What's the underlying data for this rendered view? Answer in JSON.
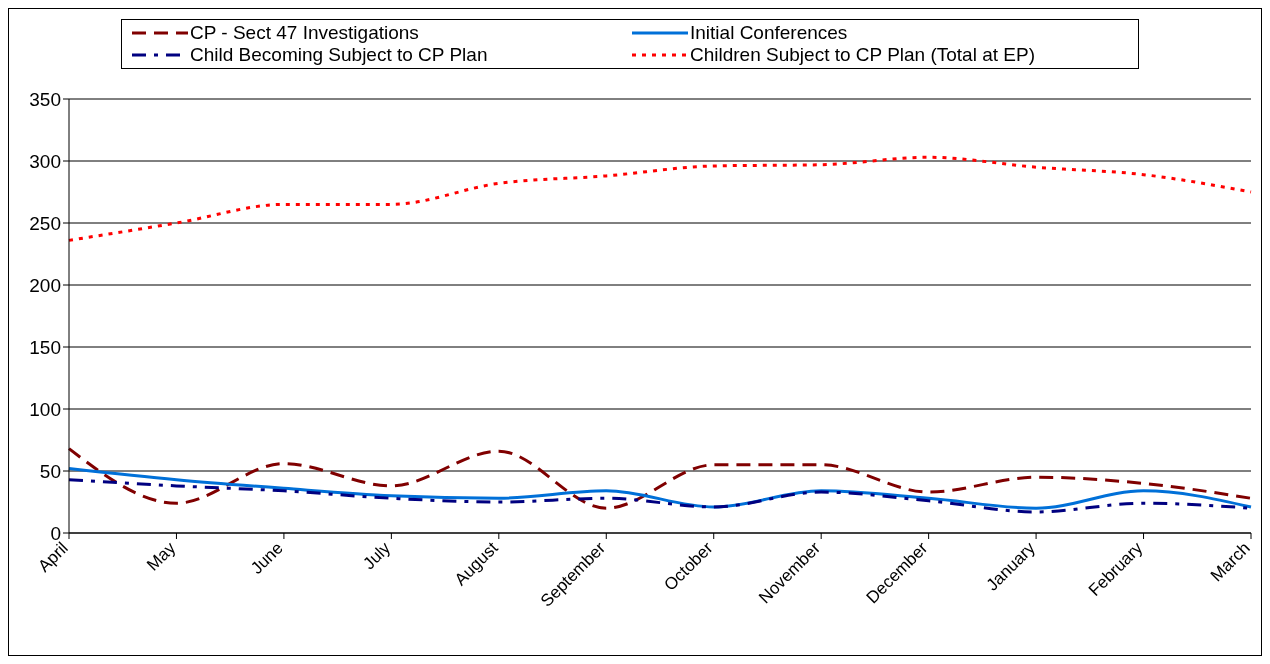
{
  "chart_data": {
    "type": "line",
    "categories": [
      "April",
      "May",
      "June",
      "July",
      "August",
      "September",
      "October",
      "November",
      "December",
      "January",
      "February",
      "March"
    ],
    "series": [
      {
        "name": "CP - Sect 47 Investigations",
        "color": "#800000",
        "line_style": "dashed",
        "values": [
          68,
          24,
          56,
          38,
          66,
          20,
          55,
          55,
          33,
          45,
          40,
          28
        ]
      },
      {
        "name": "Initial Conferences",
        "color": "#0070d8",
        "line_style": "solid",
        "values": [
          52,
          43,
          36,
          30,
          28,
          34,
          21,
          34,
          28,
          20,
          34,
          21
        ]
      },
      {
        "name": "Child Becoming Subject to CP Plan",
        "color": "#000080",
        "line_style": "dashdot",
        "values": [
          43,
          38,
          34,
          28,
          25,
          28,
          21,
          33,
          26,
          17,
          24,
          20
        ]
      },
      {
        "name": "Children Subject to CP Plan (Total at EP)",
        "color": "#ff0000",
        "line_style": "dotted",
        "values": [
          236,
          250,
          265,
          265,
          282,
          288,
          296,
          297,
          303,
          295,
          289,
          275
        ]
      }
    ],
    "ylim": [
      0,
      350
    ],
    "yticks": [
      0,
      50,
      100,
      150,
      200,
      250,
      300,
      350
    ],
    "grid": "y",
    "legend": "top",
    "marker": "none"
  }
}
